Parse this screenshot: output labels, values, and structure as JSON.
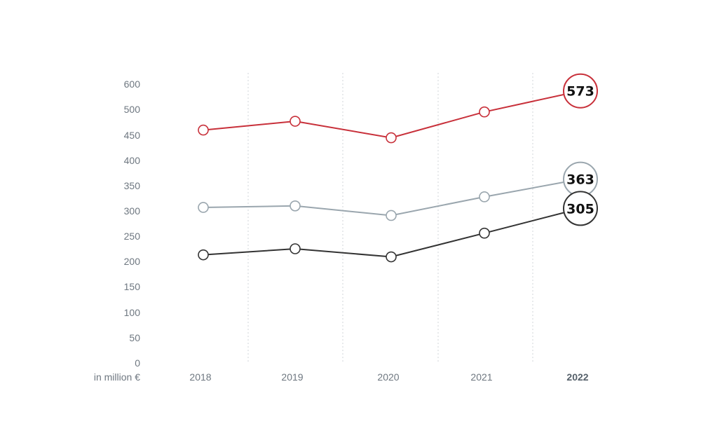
{
  "chart_data": {
    "type": "line",
    "x": [
      "2018",
      "2019",
      "2020",
      "2021",
      "2022"
    ],
    "x_highlight": "2022",
    "y_ticks": [
      "0",
      "50",
      "100",
      "150",
      "200",
      "250",
      "300",
      "350",
      "400",
      "450",
      "500",
      "600"
    ],
    "y_unit_label": "in million €",
    "grid": "vertical dotted between years",
    "series": [
      {
        "color": "#c8303a",
        "values": [
          460,
          477,
          445,
          495,
          573
        ],
        "end_label": "573"
      },
      {
        "color": "#9aa6ae",
        "values": [
          307,
          310,
          291,
          328,
          363
        ],
        "end_label": "363"
      },
      {
        "color": "#333333",
        "values": [
          213,
          225,
          209,
          256,
          305
        ],
        "end_label": "305"
      }
    ]
  }
}
